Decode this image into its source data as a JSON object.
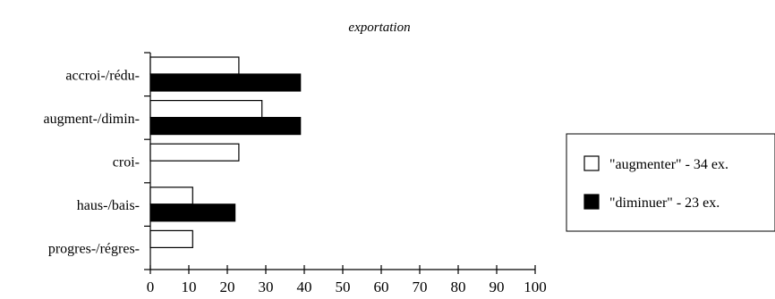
{
  "chart_data": {
    "type": "bar",
    "orientation": "horizontal",
    "title": "exportation",
    "categories": [
      "accroi-/rédu-",
      "augment-/dimin-",
      "croi-",
      "haus-/bais-",
      "progres-/régres-"
    ],
    "series": [
      {
        "name": "\"augmenter\" - 34 ex.",
        "color": "#ffffff",
        "values": [
          23,
          29,
          23,
          11,
          11
        ]
      },
      {
        "name": "\"diminuer\" - 23 ex.",
        "color": "#000000",
        "values": [
          39,
          39,
          0,
          22,
          0
        ]
      }
    ],
    "xlim": [
      0,
      100
    ],
    "xticks": [
      0,
      10,
      20,
      30,
      40,
      50,
      60,
      70,
      80,
      90,
      100
    ],
    "grid": false,
    "legend_position": "right"
  }
}
